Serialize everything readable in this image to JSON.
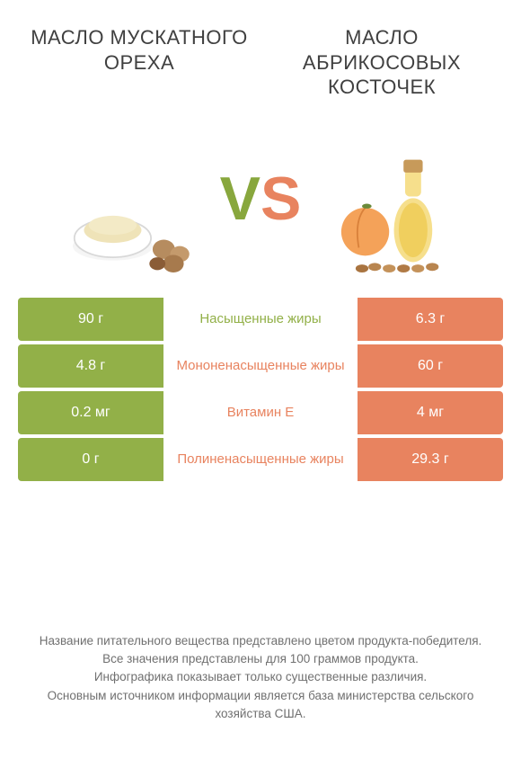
{
  "colors": {
    "left": "#92b048",
    "right": "#e8835f",
    "footer_text": "#707070",
    "title_text": "#404040",
    "background": "#ffffff"
  },
  "products": {
    "left": {
      "title": "МАСЛО МУСКАТНОГО ОРЕХА"
    },
    "right": {
      "title": "МАСЛО АБРИКОСОВЫХ КОСТОЧЕК"
    }
  },
  "vs": {
    "v": "V",
    "s": "S"
  },
  "rows": [
    {
      "left": "90 г",
      "label": "Насыщенные жиры",
      "right": "6.3 г",
      "winner": "left"
    },
    {
      "left": "4.8 г",
      "label": "Мононенасыщенные жиры",
      "right": "60 г",
      "winner": "right"
    },
    {
      "left": "0.2 мг",
      "label": "Витамин E",
      "right": "4 мг",
      "winner": "right"
    },
    {
      "left": "0 г",
      "label": "Полиненасыщенные жиры",
      "right": "29.3 г",
      "winner": "right"
    }
  ],
  "footer": {
    "line1": "Название питательного вещества представлено цветом продукта-победителя.",
    "line2": "Все значения представлены для 100 граммов продукта.",
    "line3": "Инфографика показывает только существенные различия.",
    "line4": "Основным источником информации является база министерства сельского хозяйства США."
  },
  "typography": {
    "title_fontsize": 22,
    "vs_fontsize": 68,
    "cell_fontsize": 16,
    "label_fontsize": 15,
    "footer_fontsize": 13.5
  }
}
